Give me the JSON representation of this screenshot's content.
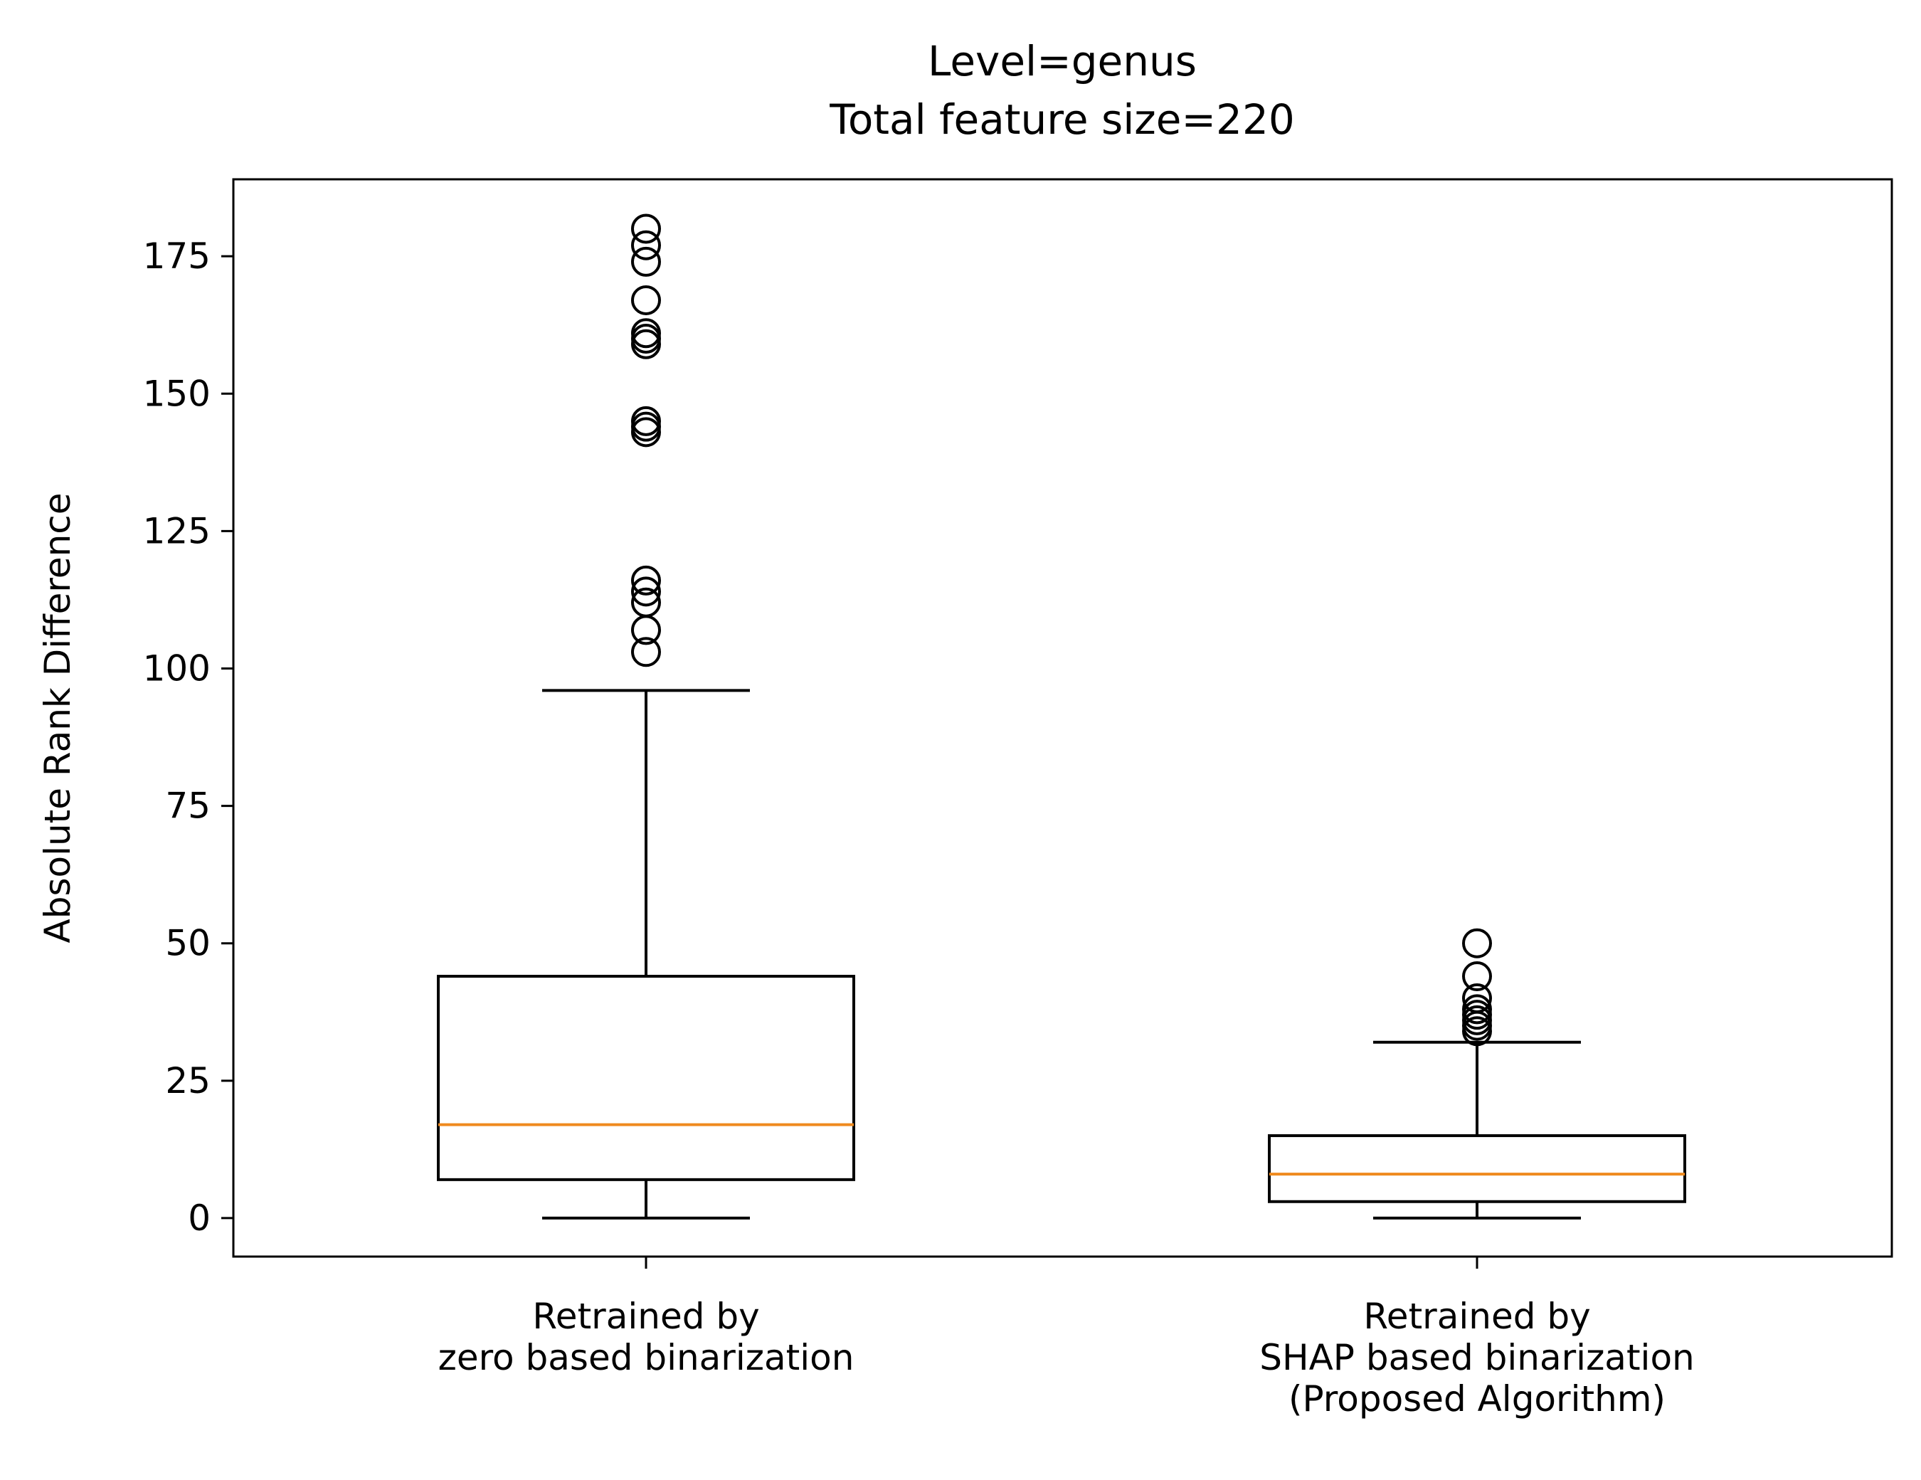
{
  "chart_data": {
    "type": "box",
    "title_lines": [
      "Level=genus",
      "Total feature size=220"
    ],
    "ylabel": "Absolute Rank Difference",
    "xlabel": "",
    "ylim": [
      -7,
      189
    ],
    "yticks": [
      0,
      25,
      50,
      75,
      100,
      125,
      150,
      175
    ],
    "grid": false,
    "categories": [
      {
        "label_lines": [
          "Retrained by",
          "zero based binarization"
        ],
        "whisker_low": 0,
        "q1": 7,
        "median": 17,
        "q3": 44,
        "whisker_high": 96,
        "outliers": [
          103,
          107,
          112,
          114,
          116,
          143,
          144,
          145,
          159,
          160,
          161,
          167,
          174,
          177,
          180
        ]
      },
      {
        "label_lines": [
          "Retrained by",
          "SHAP based binarization",
          "(Proposed Algorithm)"
        ],
        "whisker_low": 0,
        "q1": 3,
        "median": 8,
        "q3": 15,
        "whisker_high": 32,
        "outliers": [
          34,
          35,
          36,
          37,
          38,
          40,
          44,
          50
        ]
      }
    ],
    "colors": {
      "box": "#000000",
      "median": "#ef8a1e",
      "outlier": "#000000"
    }
  }
}
